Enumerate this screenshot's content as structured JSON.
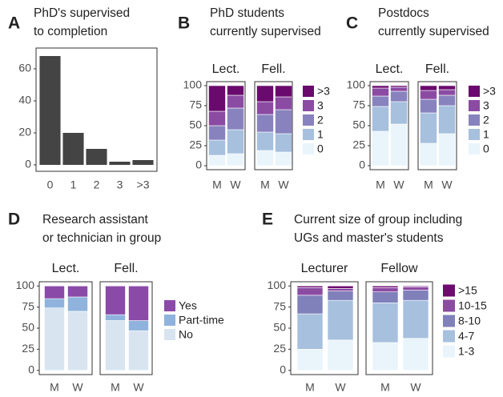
{
  "chart_data": [
    {
      "type": "bar",
      "panel": "A",
      "title": [
        "PhD's supervised",
        "to completion"
      ],
      "categories": [
        "0",
        "1",
        "2",
        "3",
        ">3"
      ],
      "values": [
        68,
        20,
        10,
        2,
        3
      ],
      "color": "#444444",
      "ylim": [
        -4,
        73
      ],
      "yticks": [
        0,
        20,
        40,
        60
      ]
    },
    {
      "type": "stacked_bar",
      "panel": "B",
      "title": [
        "PhD students",
        "currently supervised"
      ],
      "categories": [
        "M",
        "W"
      ],
      "ylim": [
        -5,
        105
      ],
      "yticks": [
        0,
        25,
        50,
        75,
        100
      ],
      "series": [
        {
          "name": ">3",
          "color": "#6a0a6e"
        },
        {
          "name": "3",
          "color": "#8b4ba3"
        },
        {
          "name": "2",
          "color": "#8883be"
        },
        {
          "name": "1",
          "color": "#a6c0de"
        },
        {
          "name": "0",
          "color": "#e9f4fb"
        }
      ],
      "facets": [
        {
          "name": "Lect.",
          "values": [
            [
              32,
              12
            ],
            [
              18,
              16
            ],
            [
              18,
              27
            ],
            [
              19,
              30
            ],
            [
              13,
              15
            ]
          ]
        },
        {
          "name": "Fell.",
          "values": [
            [
              20,
              14
            ],
            [
              16,
              16
            ],
            [
              22,
              30
            ],
            [
              23,
              23
            ],
            [
              19,
              17
            ]
          ]
        }
      ]
    },
    {
      "type": "stacked_bar",
      "panel": "C",
      "title": [
        "Postdocs",
        "currently supervised"
      ],
      "categories": [
        "M",
        "W"
      ],
      "ylim": [
        -5,
        105
      ],
      "yticks": [
        0,
        25,
        50,
        75,
        100
      ],
      "series": [
        {
          "name": ">3",
          "color": "#6a0a6e"
        },
        {
          "name": "3",
          "color": "#8b4ba3"
        },
        {
          "name": "2",
          "color": "#8883be"
        },
        {
          "name": "1",
          "color": "#a6c0de"
        },
        {
          "name": "0",
          "color": "#e9f4fb"
        }
      ],
      "facets": [
        {
          "name": "Lect.",
          "values": [
            [
              3,
              2
            ],
            [
              10,
              5
            ],
            [
              13,
              13
            ],
            [
              31,
              28
            ],
            [
              43,
              52
            ]
          ]
        },
        {
          "name": "Fell.",
          "values": [
            [
              6,
              5
            ],
            [
              11,
              7
            ],
            [
              17,
              13
            ],
            [
              38,
              35
            ],
            [
              28,
              40
            ]
          ]
        }
      ]
    },
    {
      "type": "stacked_bar",
      "panel": "D",
      "title": [
        "Research assistant",
        "or technician in group"
      ],
      "categories": [
        "M",
        "W"
      ],
      "ylim": [
        -5,
        105
      ],
      "yticks": [
        0,
        25,
        50,
        75,
        100
      ],
      "series": [
        {
          "name": "Yes",
          "color": "#8a4aa8"
        },
        {
          "name": "Part-time",
          "color": "#8fb3dc"
        },
        {
          "name": "No",
          "color": "#d8e5f0"
        }
      ],
      "facets": [
        {
          "name": "Lect.",
          "values": [
            [
              15,
              13
            ],
            [
              11,
              17
            ],
            [
              74,
              70
            ]
          ]
        },
        {
          "name": "Fell.",
          "values": [
            [
              34,
              41
            ],
            [
              7,
              12
            ],
            [
              59,
              47
            ]
          ]
        }
      ]
    },
    {
      "type": "stacked_bar",
      "panel": "E",
      "title": [
        "Current size of group including",
        "UGs and master's students"
      ],
      "categories": [
        "M",
        "W"
      ],
      "ylim": [
        -5,
        105
      ],
      "yticks": [
        0,
        25,
        50,
        75,
        100
      ],
      "series": [
        {
          "name": ">15",
          "color": "#6e0b70"
        },
        {
          "name": "10-15",
          "color": "#8b4ba3"
        },
        {
          "name": "8-10",
          "color": "#8080bb"
        },
        {
          "name": "4-7",
          "color": "#a7c0de"
        },
        {
          "name": "1-3",
          "color": "#e9f4fb"
        }
      ],
      "facets": [
        {
          "name": "Lecturer",
          "values": [
            [
              2,
              3
            ],
            [
              9,
              3
            ],
            [
              22,
              11
            ],
            [
              42,
              47
            ],
            [
              25,
              36
            ]
          ]
        },
        {
          "name": "Fellow",
          "values": [
            [
              2,
              1
            ],
            [
              5,
              4
            ],
            [
              13,
              12
            ],
            [
              47,
              45
            ],
            [
              33,
              38
            ]
          ]
        }
      ]
    }
  ]
}
